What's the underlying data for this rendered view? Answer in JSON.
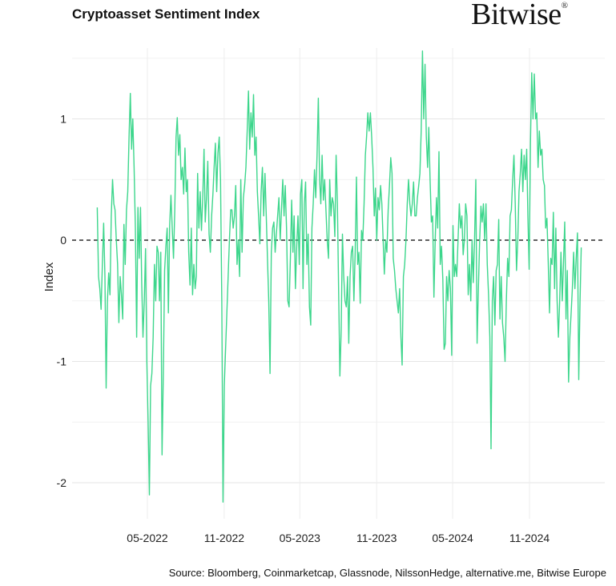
{
  "header": {
    "title": "Cryptoasset Sentiment Index",
    "logo_text": "Bitwise",
    "logo_mark": "®"
  },
  "footer": {
    "source": "Source: Bloomberg, Coinmarketcap, Glassnode, NilssonHedge, alternative.me, Bitwise Europe"
  },
  "chart_data": {
    "type": "line",
    "title": "Cryptoasset Sentiment Index",
    "xlabel": "",
    "ylabel": "Index",
    "ylim": [
      -2.28,
      1.5
    ],
    "x_range": [
      "2022-01-01",
      "2025-03-05"
    ],
    "y_ticks": [
      1,
      0,
      -1,
      -2
    ],
    "y_tick_labels": [
      "1",
      "0",
      "-1",
      "-2"
    ],
    "x_ticks": [
      "2022-05-01",
      "2022-11-01",
      "2023-05-01",
      "2023-11-01",
      "2024-05-01",
      "2024-11-01"
    ],
    "x_tick_labels": [
      "05-2022",
      "11-2022",
      "05-2023",
      "11-2023",
      "05-2024",
      "11-2024"
    ],
    "grid": true,
    "reference_line": {
      "y": 0,
      "style": "dashed",
      "color": "#000000"
    },
    "line_color": "#3dd68c",
    "series": [
      {
        "values": [
          0.27,
          -0.3,
          -0.4,
          -0.57,
          -0.2,
          0.14,
          -0.3,
          -1.22,
          -0.5,
          -0.27,
          -0.45,
          0.2,
          0.5,
          0.3,
          0.25,
          0,
          -0.2,
          -0.68,
          -0.3,
          -0.45,
          -0.65,
          0.13,
          -0.2,
          0.25,
          0.4,
          0.85,
          1.21,
          0.75,
          1.0,
          0.6,
          0.1,
          -0.8,
          0.27,
          -0.15,
          0.27,
          -0.35,
          -0.8,
          -0.5,
          -0.07,
          -1.0,
          -1.5,
          -2.1,
          -1.2,
          -1.1,
          -0.8,
          -0.2,
          -0.5,
          -0.05,
          -0.1,
          -0.5,
          -0.1,
          -1.77,
          -1.1,
          -0.25,
          -0.05,
          0.1,
          -0.6,
          0.12,
          0.37,
          0.1,
          -0.15,
          0.25,
          0.85,
          1.01,
          0.7,
          0.87,
          0.5,
          0.6,
          0.38,
          0.76,
          0.4,
          0.5,
          -0.1,
          -0.37,
          0.1,
          -0.45,
          -0.2,
          -0.4,
          -0.3,
          0.55,
          0.1,
          0.4,
          0.08,
          0.35,
          0.75,
          0.15,
          0.35,
          0.65,
          0.05,
          -0.1,
          0.2,
          0.38,
          0.6,
          0.8,
          0.4,
          0.72,
          0.85,
          0.5,
          -0.5,
          -2.16,
          -1.2,
          -0.9,
          -0.6,
          -0.3,
          0.0,
          0.25,
          0.25,
          0.1,
          0.2,
          0.45,
          -0.2,
          0.0,
          -0.3,
          0.5,
          -0.1,
          0.35,
          0.45,
          0.6,
          0.9,
          1.23,
          0.75,
          1.05,
          0.85,
          1.2,
          0.7,
          0.85,
          0.4,
          0.2,
          -0.03,
          0.4,
          0.6,
          0.2,
          0.55,
          0.2,
          -0.15,
          -0.5,
          -1.1,
          -0.1,
          0.1,
          0.15,
          -0.1,
          0.05,
          0.2,
          0.35,
          0.0,
          0.25,
          0.5,
          0.2,
          0.45,
          0.1,
          -0.5,
          -0.55,
          -0.15,
          0.33,
          -0.1,
          0.2,
          -0.4,
          -0.05,
          0.2,
          -0.2,
          0.38,
          0.5,
          -0.4,
          0.3,
          0.48,
          -0.2,
          0.05,
          -0.55,
          -0.7,
          0.1,
          0.3,
          0.58,
          0.35,
          0.7,
          1.17,
          0.5,
          0.3,
          0.7,
          0.33,
          0.5,
          0.25,
          0.0,
          -0.15,
          0.5,
          0.2,
          0.35,
          0.3,
          0.03,
          0.7,
          0.3,
          -0.4,
          -1.12,
          -0.75,
          0.05,
          -0.3,
          -0.5,
          -0.55,
          -0.3,
          -0.85,
          -0.3,
          -0.1,
          -0.05,
          -0.5,
          -0.1,
          0.52,
          -0.2,
          -0.1,
          -0.52,
          0.08,
          0.0,
          0.3,
          0.7,
          0.85,
          1.05,
          0.9,
          1.05,
          0.85,
          0.6,
          0.2,
          0.43,
          0.0,
          0.35,
          0.25,
          0.45,
          0.3,
          0.0,
          -0.28,
          0.0,
          -0.1,
          0.25,
          0.45,
          0.68,
          0.55,
          -0.15,
          -0.25,
          -0.4,
          -0.5,
          -0.6,
          -0.4,
          -0.8,
          -1.03,
          -0.3,
          -0.2,
          0.0,
          0.3,
          0.5,
          0.3,
          0.2,
          0.3,
          0.48,
          0.2,
          0.2,
          0.35,
          0.45,
          0.55,
          0.9,
          1.56,
          1.0,
          1.45,
          0.85,
          0.6,
          0.93,
          0.5,
          0.15,
          0.2,
          -0.47,
          0.0,
          0.35,
          0.1,
          0.73,
          -0.2,
          -0.05,
          -0.32,
          -0.9,
          -0.85,
          -0.3,
          -0.5,
          -0.25,
          -0.4,
          -0.95,
          0.12,
          -0.3,
          -0.2,
          -0.3,
          0.0,
          0.3,
          0.1,
          0.2,
          -0.12,
          0.0,
          0.3,
          0.2,
          -0.45,
          -0.2,
          -0.5,
          0.0,
          -0.35,
          0.0,
          0.5,
          -0.85,
          -0.4,
          0.0,
          0.28,
          0.15,
          0.3,
          0.0,
          0.3,
          -0.2,
          -0.45,
          -0.8,
          -1.72,
          -0.5,
          -0.3,
          -0.7,
          -0.25,
          -0.2,
          0.17,
          -0.65,
          -0.3,
          -0.68,
          -0.8,
          -1.0,
          -0.5,
          -0.15,
          -0.3,
          0.2,
          0.25,
          0.5,
          0.7,
          0.3,
          -0.25,
          0.0,
          0.4,
          0.55,
          0.75,
          0.4,
          0.7,
          0.5,
          0.75,
          0.2,
          -0.24,
          0.8,
          1.38,
          1.0,
          1.37,
          1.0,
          1.05,
          0.6,
          0.9,
          0.7,
          0.75,
          0.5,
          0.45,
          0.1,
          0.18,
          -0.18,
          -0.6,
          -0.15,
          -0.2,
          0.23,
          -0.4,
          0.1,
          -0.5,
          -0.8,
          -0.5,
          -0.1,
          -0.5,
          -0.2,
          0.15,
          -0.65,
          -0.25,
          -1.17,
          -0.8,
          -0.6,
          -0.4,
          -0.1,
          -0.4,
          -0.15,
          0.06,
          -1.15,
          -0.5,
          -0.06
        ]
      }
    ]
  }
}
